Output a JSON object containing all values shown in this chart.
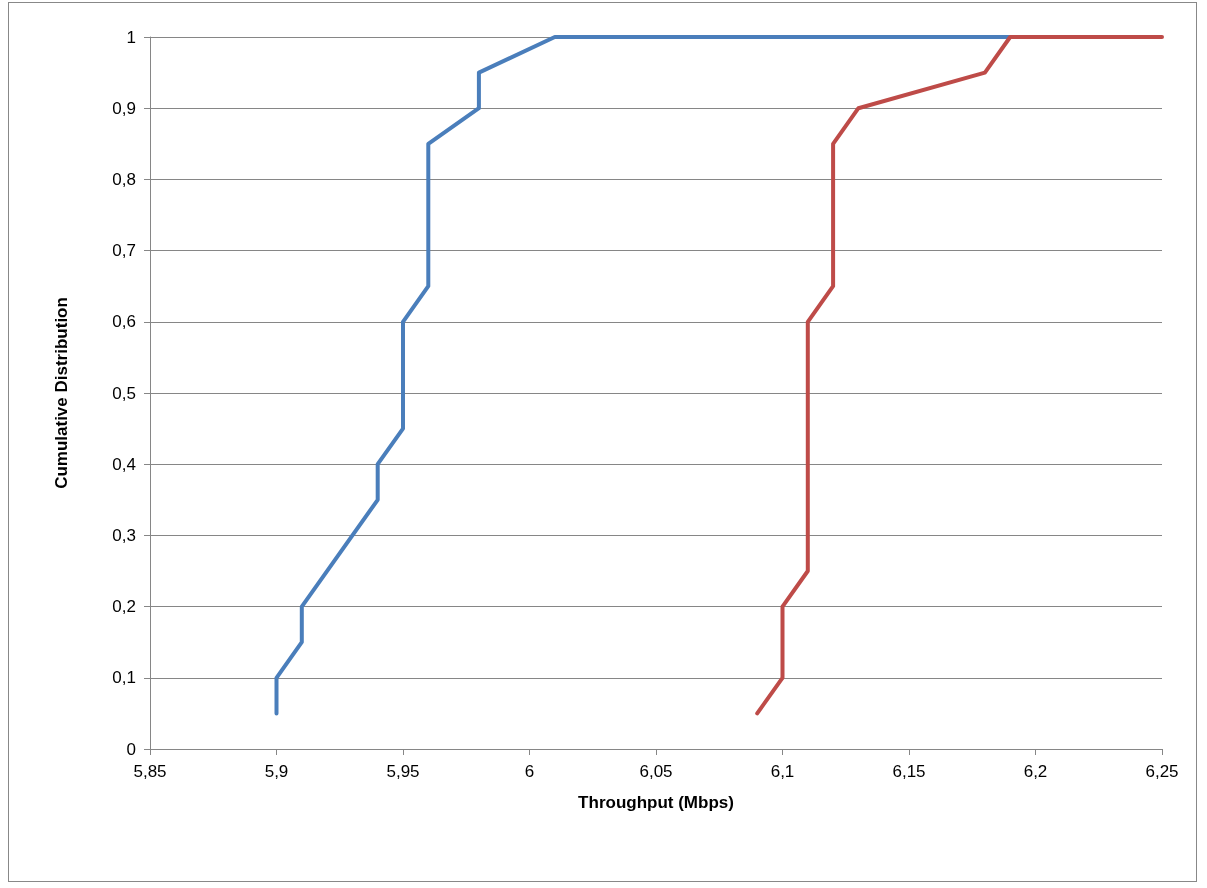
{
  "chart_data": {
    "type": "line",
    "xlabel": "Throughput (Mbps)",
    "ylabel": "Cumulative Distribution",
    "xlim": [
      5.85,
      6.25
    ],
    "ylim": [
      0,
      1
    ],
    "xticks": [
      {
        "value": 5.85,
        "label": "5,85"
      },
      {
        "value": 5.9,
        "label": "5,9"
      },
      {
        "value": 5.95,
        "label": "5,95"
      },
      6,
      {
        "value": 6.05,
        "label": "6,05"
      },
      {
        "value": 6.1,
        "label": "6,1"
      },
      {
        "value": 6.15,
        "label": "6,15"
      },
      {
        "value": 6.2,
        "label": "6,2"
      },
      {
        "value": 6.25,
        "label": "6,25"
      }
    ],
    "yticks": [
      0,
      {
        "value": 0.1,
        "label": "0,1"
      },
      {
        "value": 0.2,
        "label": "0,2"
      },
      {
        "value": 0.3,
        "label": "0,3"
      },
      {
        "value": 0.4,
        "label": "0,4"
      },
      {
        "value": 0.5,
        "label": "0,5"
      },
      {
        "value": 0.6,
        "label": "0,6"
      },
      {
        "value": 0.7,
        "label": "0,7"
      },
      {
        "value": 0.8,
        "label": "0,8"
      },
      {
        "value": 0.9,
        "label": "0,9"
      },
      1
    ],
    "grid": "y",
    "marker": "none",
    "line_style": "solid",
    "series": [
      {
        "color": "#4a7ebb",
        "x": [
          5.9,
          5.9,
          5.91,
          5.91,
          5.94,
          5.94,
          5.95,
          5.95,
          5.96,
          5.96,
          5.98,
          5.98,
          6.01,
          6.19
        ],
        "values": [
          0.05,
          0.1,
          0.15,
          0.2,
          0.35,
          0.4,
          0.45,
          0.6,
          0.65,
          0.85,
          0.9,
          0.95,
          1,
          1
        ]
      },
      {
        "color": "#be4b48",
        "x": [
          6.09,
          6.1,
          6.1,
          6.11,
          6.11,
          6.12,
          6.12,
          6.13,
          6.18,
          6.19,
          6.25
        ],
        "values": [
          0.05,
          0.1,
          0.2,
          0.25,
          0.6,
          0.65,
          0.85,
          0.9,
          0.95,
          1,
          1
        ]
      }
    ]
  }
}
